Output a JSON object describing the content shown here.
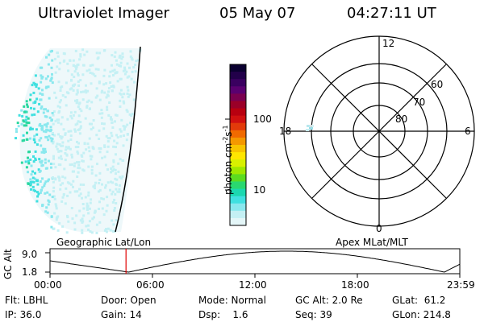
{
  "header": {
    "instrument": "Ultraviolet Imager",
    "date": "05 May 07",
    "time": "04:27:11 UT"
  },
  "colorbar": {
    "label": "photon cm",
    "label_sup1": "-2",
    "label_mid": "s",
    "label_sup2": "-1",
    "ticks": [
      "100",
      "10"
    ],
    "colors": [
      "#0a0030",
      "#22004a",
      "#3a0060",
      "#5a0070",
      "#7a0050",
      "#9a0028",
      "#b80010",
      "#d01010",
      "#e23a0a",
      "#f06a00",
      "#f49800",
      "#f8c400",
      "#ffe600",
      "#d8f000",
      "#9fe800",
      "#5cdc20",
      "#2ad870",
      "#1cd8b0",
      "#40e0e0",
      "#8ae8ee",
      "#c4f0f4",
      "#e4f6f8"
    ]
  },
  "polar_plot": {
    "mlt_labels": {
      "top": "12",
      "left": "18",
      "right": "6",
      "bottom": "0"
    },
    "lat_labels": [
      "60",
      "70",
      "80"
    ]
  },
  "altitude_plot": {
    "left_title": "Geographic Lat/Lon",
    "right_title": "Apex MLat/MLT",
    "ylabel": "GC Alt",
    "y_ticks": [
      "9.0",
      "1.8"
    ],
    "x_ticks": [
      "00:00",
      "06:00",
      "12:00",
      "18:00",
      "23:59"
    ],
    "current_time_hours": 4.45
  },
  "status": {
    "filter": "Flt: LBHL",
    "door": "Door: Open",
    "mode": "Mode: Normal",
    "gc_alt": "GC Alt: 2.0 Re",
    "glat": "GLat:  61.2",
    "ip": "IP: 36.0",
    "gain": "Gain: 14",
    "dsp": "Dsp:    1.6",
    "seq": "Seq: 39",
    "glon": "GLon: 214.8"
  }
}
